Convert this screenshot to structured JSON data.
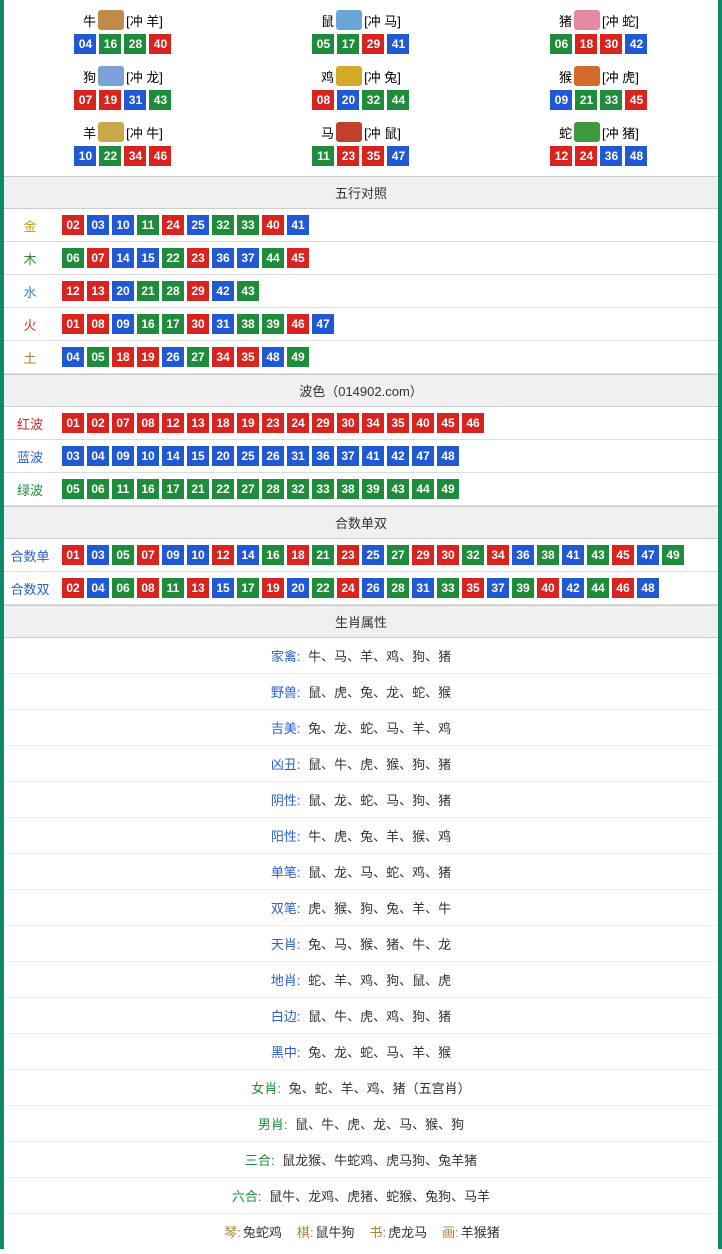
{
  "colors": {
    "red": "#d9231f",
    "blue": "#2158d4",
    "green": "#1e8c3a",
    "border": "#0e8a6a",
    "headerBg": "#f0f0f0"
  },
  "zodiac_icon_colors": {
    "牛": "#c08a4a",
    "鼠": "#6aa7d6",
    "猪": "#e48aa0",
    "狗": "#7aa2d8",
    "鸡": "#d4a92a",
    "猴": "#d46a2a",
    "羊": "#c9a94a",
    "马": "#c0402a",
    "蛇": "#3e9a3e"
  },
  "zodiac": [
    {
      "name": "牛",
      "clash": "[冲 羊]",
      "nums": [
        {
          "v": "04",
          "c": "b"
        },
        {
          "v": "16",
          "c": "g"
        },
        {
          "v": "28",
          "c": "g"
        },
        {
          "v": "40",
          "c": "r"
        }
      ]
    },
    {
      "name": "鼠",
      "clash": "[冲 马]",
      "nums": [
        {
          "v": "05",
          "c": "g"
        },
        {
          "v": "17",
          "c": "g"
        },
        {
          "v": "29",
          "c": "r"
        },
        {
          "v": "41",
          "c": "b"
        }
      ]
    },
    {
      "name": "猪",
      "clash": "[冲 蛇]",
      "nums": [
        {
          "v": "06",
          "c": "g"
        },
        {
          "v": "18",
          "c": "r"
        },
        {
          "v": "30",
          "c": "r"
        },
        {
          "v": "42",
          "c": "b"
        }
      ]
    },
    {
      "name": "狗",
      "clash": "[冲 龙]",
      "nums": [
        {
          "v": "07",
          "c": "r"
        },
        {
          "v": "19",
          "c": "r"
        },
        {
          "v": "31",
          "c": "b"
        },
        {
          "v": "43",
          "c": "g"
        }
      ]
    },
    {
      "name": "鸡",
      "clash": "[冲 兔]",
      "nums": [
        {
          "v": "08",
          "c": "r"
        },
        {
          "v": "20",
          "c": "b"
        },
        {
          "v": "32",
          "c": "g"
        },
        {
          "v": "44",
          "c": "g"
        }
      ]
    },
    {
      "name": "猴",
      "clash": "[冲 虎]",
      "nums": [
        {
          "v": "09",
          "c": "b"
        },
        {
          "v": "21",
          "c": "g"
        },
        {
          "v": "33",
          "c": "g"
        },
        {
          "v": "45",
          "c": "r"
        }
      ]
    },
    {
      "name": "羊",
      "clash": "[冲 牛]",
      "nums": [
        {
          "v": "10",
          "c": "b"
        },
        {
          "v": "22",
          "c": "g"
        },
        {
          "v": "34",
          "c": "r"
        },
        {
          "v": "46",
          "c": "r"
        }
      ]
    },
    {
      "name": "马",
      "clash": "[冲 鼠]",
      "nums": [
        {
          "v": "11",
          "c": "g"
        },
        {
          "v": "23",
          "c": "r"
        },
        {
          "v": "35",
          "c": "r"
        },
        {
          "v": "47",
          "c": "b"
        }
      ]
    },
    {
      "name": "蛇",
      "clash": "[冲 猪]",
      "nums": [
        {
          "v": "12",
          "c": "r"
        },
        {
          "v": "24",
          "c": "r"
        },
        {
          "v": "36",
          "c": "b"
        },
        {
          "v": "48",
          "c": "b"
        }
      ]
    }
  ],
  "sections": {
    "wuxing": {
      "title": "五行对照",
      "rows": [
        {
          "label": "金",
          "cls": "lbl-gold",
          "nums": [
            {
              "v": "02",
              "c": "r"
            },
            {
              "v": "03",
              "c": "b"
            },
            {
              "v": "10",
              "c": "b"
            },
            {
              "v": "11",
              "c": "g"
            },
            {
              "v": "24",
              "c": "r"
            },
            {
              "v": "25",
              "c": "b"
            },
            {
              "v": "32",
              "c": "g"
            },
            {
              "v": "33",
              "c": "g"
            },
            {
              "v": "40",
              "c": "r"
            },
            {
              "v": "41",
              "c": "b"
            }
          ]
        },
        {
          "label": "木",
          "cls": "lbl-wood",
          "nums": [
            {
              "v": "06",
              "c": "g"
            },
            {
              "v": "07",
              "c": "r"
            },
            {
              "v": "14",
              "c": "b"
            },
            {
              "v": "15",
              "c": "b"
            },
            {
              "v": "22",
              "c": "g"
            },
            {
              "v": "23",
              "c": "r"
            },
            {
              "v": "36",
              "c": "b"
            },
            {
              "v": "37",
              "c": "b"
            },
            {
              "v": "44",
              "c": "g"
            },
            {
              "v": "45",
              "c": "r"
            }
          ]
        },
        {
          "label": "水",
          "cls": "lbl-water",
          "nums": [
            {
              "v": "12",
              "c": "r"
            },
            {
              "v": "13",
              "c": "r"
            },
            {
              "v": "20",
              "c": "b"
            },
            {
              "v": "21",
              "c": "g"
            },
            {
              "v": "28",
              "c": "g"
            },
            {
              "v": "29",
              "c": "r"
            },
            {
              "v": "42",
              "c": "b"
            },
            {
              "v": "43",
              "c": "g"
            }
          ]
        },
        {
          "label": "火",
          "cls": "lbl-fire",
          "nums": [
            {
              "v": "01",
              "c": "r"
            },
            {
              "v": "08",
              "c": "r"
            },
            {
              "v": "09",
              "c": "b"
            },
            {
              "v": "16",
              "c": "g"
            },
            {
              "v": "17",
              "c": "g"
            },
            {
              "v": "30",
              "c": "r"
            },
            {
              "v": "31",
              "c": "b"
            },
            {
              "v": "38",
              "c": "g"
            },
            {
              "v": "39",
              "c": "g"
            },
            {
              "v": "46",
              "c": "r"
            },
            {
              "v": "47",
              "c": "b"
            }
          ]
        },
        {
          "label": "土",
          "cls": "lbl-earth",
          "nums": [
            {
              "v": "04",
              "c": "b"
            },
            {
              "v": "05",
              "c": "g"
            },
            {
              "v": "18",
              "c": "r"
            },
            {
              "v": "19",
              "c": "r"
            },
            {
              "v": "26",
              "c": "b"
            },
            {
              "v": "27",
              "c": "g"
            },
            {
              "v": "34",
              "c": "r"
            },
            {
              "v": "35",
              "c": "r"
            },
            {
              "v": "48",
              "c": "b"
            },
            {
              "v": "49",
              "c": "g"
            }
          ]
        }
      ]
    },
    "bose": {
      "title": "波色（014902.com）",
      "rows": [
        {
          "label": "红波",
          "cls": "lbl-red",
          "nums": [
            {
              "v": "01",
              "c": "r"
            },
            {
              "v": "02",
              "c": "r"
            },
            {
              "v": "07",
              "c": "r"
            },
            {
              "v": "08",
              "c": "r"
            },
            {
              "v": "12",
              "c": "r"
            },
            {
              "v": "13",
              "c": "r"
            },
            {
              "v": "18",
              "c": "r"
            },
            {
              "v": "19",
              "c": "r"
            },
            {
              "v": "23",
              "c": "r"
            },
            {
              "v": "24",
              "c": "r"
            },
            {
              "v": "29",
              "c": "r"
            },
            {
              "v": "30",
              "c": "r"
            },
            {
              "v": "34",
              "c": "r"
            },
            {
              "v": "35",
              "c": "r"
            },
            {
              "v": "40",
              "c": "r"
            },
            {
              "v": "45",
              "c": "r"
            },
            {
              "v": "46",
              "c": "r"
            }
          ]
        },
        {
          "label": "蓝波",
          "cls": "lbl-blue",
          "nums": [
            {
              "v": "03",
              "c": "b"
            },
            {
              "v": "04",
              "c": "b"
            },
            {
              "v": "09",
              "c": "b"
            },
            {
              "v": "10",
              "c": "b"
            },
            {
              "v": "14",
              "c": "b"
            },
            {
              "v": "15",
              "c": "b"
            },
            {
              "v": "20",
              "c": "b"
            },
            {
              "v": "25",
              "c": "b"
            },
            {
              "v": "26",
              "c": "b"
            },
            {
              "v": "31",
              "c": "b"
            },
            {
              "v": "36",
              "c": "b"
            },
            {
              "v": "37",
              "c": "b"
            },
            {
              "v": "41",
              "c": "b"
            },
            {
              "v": "42",
              "c": "b"
            },
            {
              "v": "47",
              "c": "b"
            },
            {
              "v": "48",
              "c": "b"
            }
          ]
        },
        {
          "label": "绿波",
          "cls": "lbl-green",
          "nums": [
            {
              "v": "05",
              "c": "g"
            },
            {
              "v": "06",
              "c": "g"
            },
            {
              "v": "11",
              "c": "g"
            },
            {
              "v": "16",
              "c": "g"
            },
            {
              "v": "17",
              "c": "g"
            },
            {
              "v": "21",
              "c": "g"
            },
            {
              "v": "22",
              "c": "g"
            },
            {
              "v": "27",
              "c": "g"
            },
            {
              "v": "28",
              "c": "g"
            },
            {
              "v": "32",
              "c": "g"
            },
            {
              "v": "33",
              "c": "g"
            },
            {
              "v": "38",
              "c": "g"
            },
            {
              "v": "39",
              "c": "g"
            },
            {
              "v": "43",
              "c": "g"
            },
            {
              "v": "44",
              "c": "g"
            },
            {
              "v": "49",
              "c": "g"
            }
          ]
        }
      ]
    },
    "heshu": {
      "title": "合数单双",
      "rows": [
        {
          "label": "合数单",
          "cls": "lbl-sidx",
          "nums": [
            {
              "v": "01",
              "c": "r"
            },
            {
              "v": "03",
              "c": "b"
            },
            {
              "v": "05",
              "c": "g"
            },
            {
              "v": "07",
              "c": "r"
            },
            {
              "v": "09",
              "c": "b"
            },
            {
              "v": "10",
              "c": "b"
            },
            {
              "v": "12",
              "c": "r"
            },
            {
              "v": "14",
              "c": "b"
            },
            {
              "v": "16",
              "c": "g"
            },
            {
              "v": "18",
              "c": "r"
            },
            {
              "v": "21",
              "c": "g"
            },
            {
              "v": "23",
              "c": "r"
            },
            {
              "v": "25",
              "c": "b"
            },
            {
              "v": "27",
              "c": "g"
            },
            {
              "v": "29",
              "c": "r"
            },
            {
              "v": "30",
              "c": "r"
            },
            {
              "v": "32",
              "c": "g"
            },
            {
              "v": "34",
              "c": "r"
            },
            {
              "v": "36",
              "c": "b"
            },
            {
              "v": "38",
              "c": "g"
            },
            {
              "v": "41",
              "c": "b"
            },
            {
              "v": "43",
              "c": "g"
            },
            {
              "v": "45",
              "c": "r"
            },
            {
              "v": "47",
              "c": "b"
            },
            {
              "v": "49",
              "c": "g"
            }
          ]
        },
        {
          "label": "合数双",
          "cls": "lbl-sidx",
          "nums": [
            {
              "v": "02",
              "c": "r"
            },
            {
              "v": "04",
              "c": "b"
            },
            {
              "v": "06",
              "c": "g"
            },
            {
              "v": "08",
              "c": "r"
            },
            {
              "v": "11",
              "c": "g"
            },
            {
              "v": "13",
              "c": "r"
            },
            {
              "v": "15",
              "c": "b"
            },
            {
              "v": "17",
              "c": "g"
            },
            {
              "v": "19",
              "c": "r"
            },
            {
              "v": "20",
              "c": "b"
            },
            {
              "v": "22",
              "c": "g"
            },
            {
              "v": "24",
              "c": "r"
            },
            {
              "v": "26",
              "c": "b"
            },
            {
              "v": "28",
              "c": "g"
            },
            {
              "v": "31",
              "c": "b"
            },
            {
              "v": "33",
              "c": "g"
            },
            {
              "v": "35",
              "c": "r"
            },
            {
              "v": "37",
              "c": "b"
            },
            {
              "v": "39",
              "c": "g"
            },
            {
              "v": "40",
              "c": "r"
            },
            {
              "v": "42",
              "c": "b"
            },
            {
              "v": "44",
              "c": "g"
            },
            {
              "v": "46",
              "c": "r"
            },
            {
              "v": "48",
              "c": "b"
            }
          ]
        }
      ]
    }
  },
  "attrs": {
    "title": "生肖属性",
    "rows": [
      {
        "label": "家禽:",
        "cls": "blue",
        "val": "牛、马、羊、鸡、狗、猪"
      },
      {
        "label": "野兽:",
        "cls": "blue",
        "val": "鼠、虎、兔、龙、蛇、猴"
      },
      {
        "label": "吉美:",
        "cls": "blue",
        "val": "兔、龙、蛇、马、羊、鸡"
      },
      {
        "label": "凶丑:",
        "cls": "blue",
        "val": "鼠、牛、虎、猴、狗、猪"
      },
      {
        "label": "阴性:",
        "cls": "blue",
        "val": "鼠、龙、蛇、马、狗、猪"
      },
      {
        "label": "阳性:",
        "cls": "blue",
        "val": "牛、虎、兔、羊、猴、鸡"
      },
      {
        "label": "单笔:",
        "cls": "blue",
        "val": "鼠、龙、马、蛇、鸡、猪"
      },
      {
        "label": "双笔:",
        "cls": "blue",
        "val": "虎、猴、狗、兔、羊、牛"
      },
      {
        "label": "天肖:",
        "cls": "blue",
        "val": "兔、马、猴、猪、牛、龙"
      },
      {
        "label": "地肖:",
        "cls": "blue",
        "val": "蛇、羊、鸡、狗、鼠、虎"
      },
      {
        "label": "白边:",
        "cls": "blue",
        "val": "鼠、牛、虎、鸡、狗、猪"
      },
      {
        "label": "黑中:",
        "cls": "blue",
        "val": "兔、龙、蛇、马、羊、猴"
      },
      {
        "label": "女肖:",
        "cls": "green",
        "val": "兔、蛇、羊、鸡、猪（五宫肖）"
      },
      {
        "label": "男肖:",
        "cls": "green",
        "val": "鼠、牛、虎、龙、马、猴、狗"
      },
      {
        "label": "三合:",
        "cls": "green",
        "val": "鼠龙猴、牛蛇鸡、虎马狗、兔羊猪"
      },
      {
        "label": "六合:",
        "cls": "green",
        "val": "鼠牛、龙鸡、虎猪、蛇猴、兔狗、马羊"
      }
    ]
  },
  "bottom": {
    "items": [
      {
        "k": "琴:",
        "v": "兔蛇鸡"
      },
      {
        "k": "棋:",
        "v": "鼠牛狗"
      },
      {
        "k": "书:",
        "v": "虎龙马"
      },
      {
        "k": "画:",
        "v": "羊猴猪"
      }
    ]
  }
}
